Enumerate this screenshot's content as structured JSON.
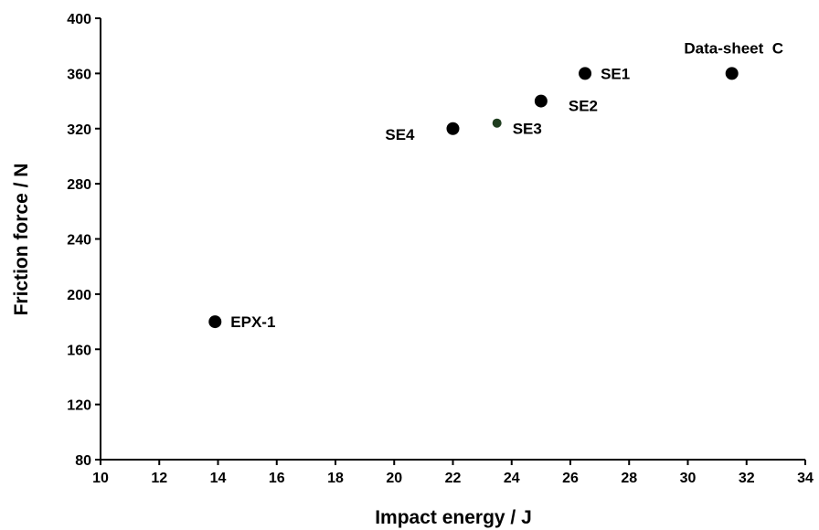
{
  "chart_data": {
    "type": "scatter",
    "title": "",
    "xlabel": "Impact energy / J",
    "ylabel": "Friction force / N",
    "xlim": [
      10,
      34
    ],
    "ylim": [
      80,
      400
    ],
    "xticks": [
      10,
      12,
      14,
      16,
      18,
      20,
      22,
      24,
      26,
      28,
      30,
      32,
      34
    ],
    "yticks": [
      80,
      120,
      160,
      200,
      240,
      280,
      320,
      360,
      400
    ],
    "grid": false,
    "legend": "none",
    "marker_color": "#000000",
    "points": [
      {
        "label": "EPX-1",
        "x": 13.9,
        "y": 180,
        "label_side": "right"
      },
      {
        "label": "SE4",
        "x": 22.0,
        "y": 320,
        "label_side": "left"
      },
      {
        "label": "SE3",
        "x": 23.5,
        "y": 324,
        "label_side": "right",
        "marker": "small",
        "marker_color": "#1f3d1f"
      },
      {
        "label": "SE2",
        "x": 25.0,
        "y": 340,
        "label_side": "below-right"
      },
      {
        "label": "SE1",
        "x": 26.5,
        "y": 360,
        "label_side": "right"
      },
      {
        "label": "Data-sheet  C",
        "x": 31.5,
        "y": 360,
        "label_side": "above"
      }
    ]
  }
}
